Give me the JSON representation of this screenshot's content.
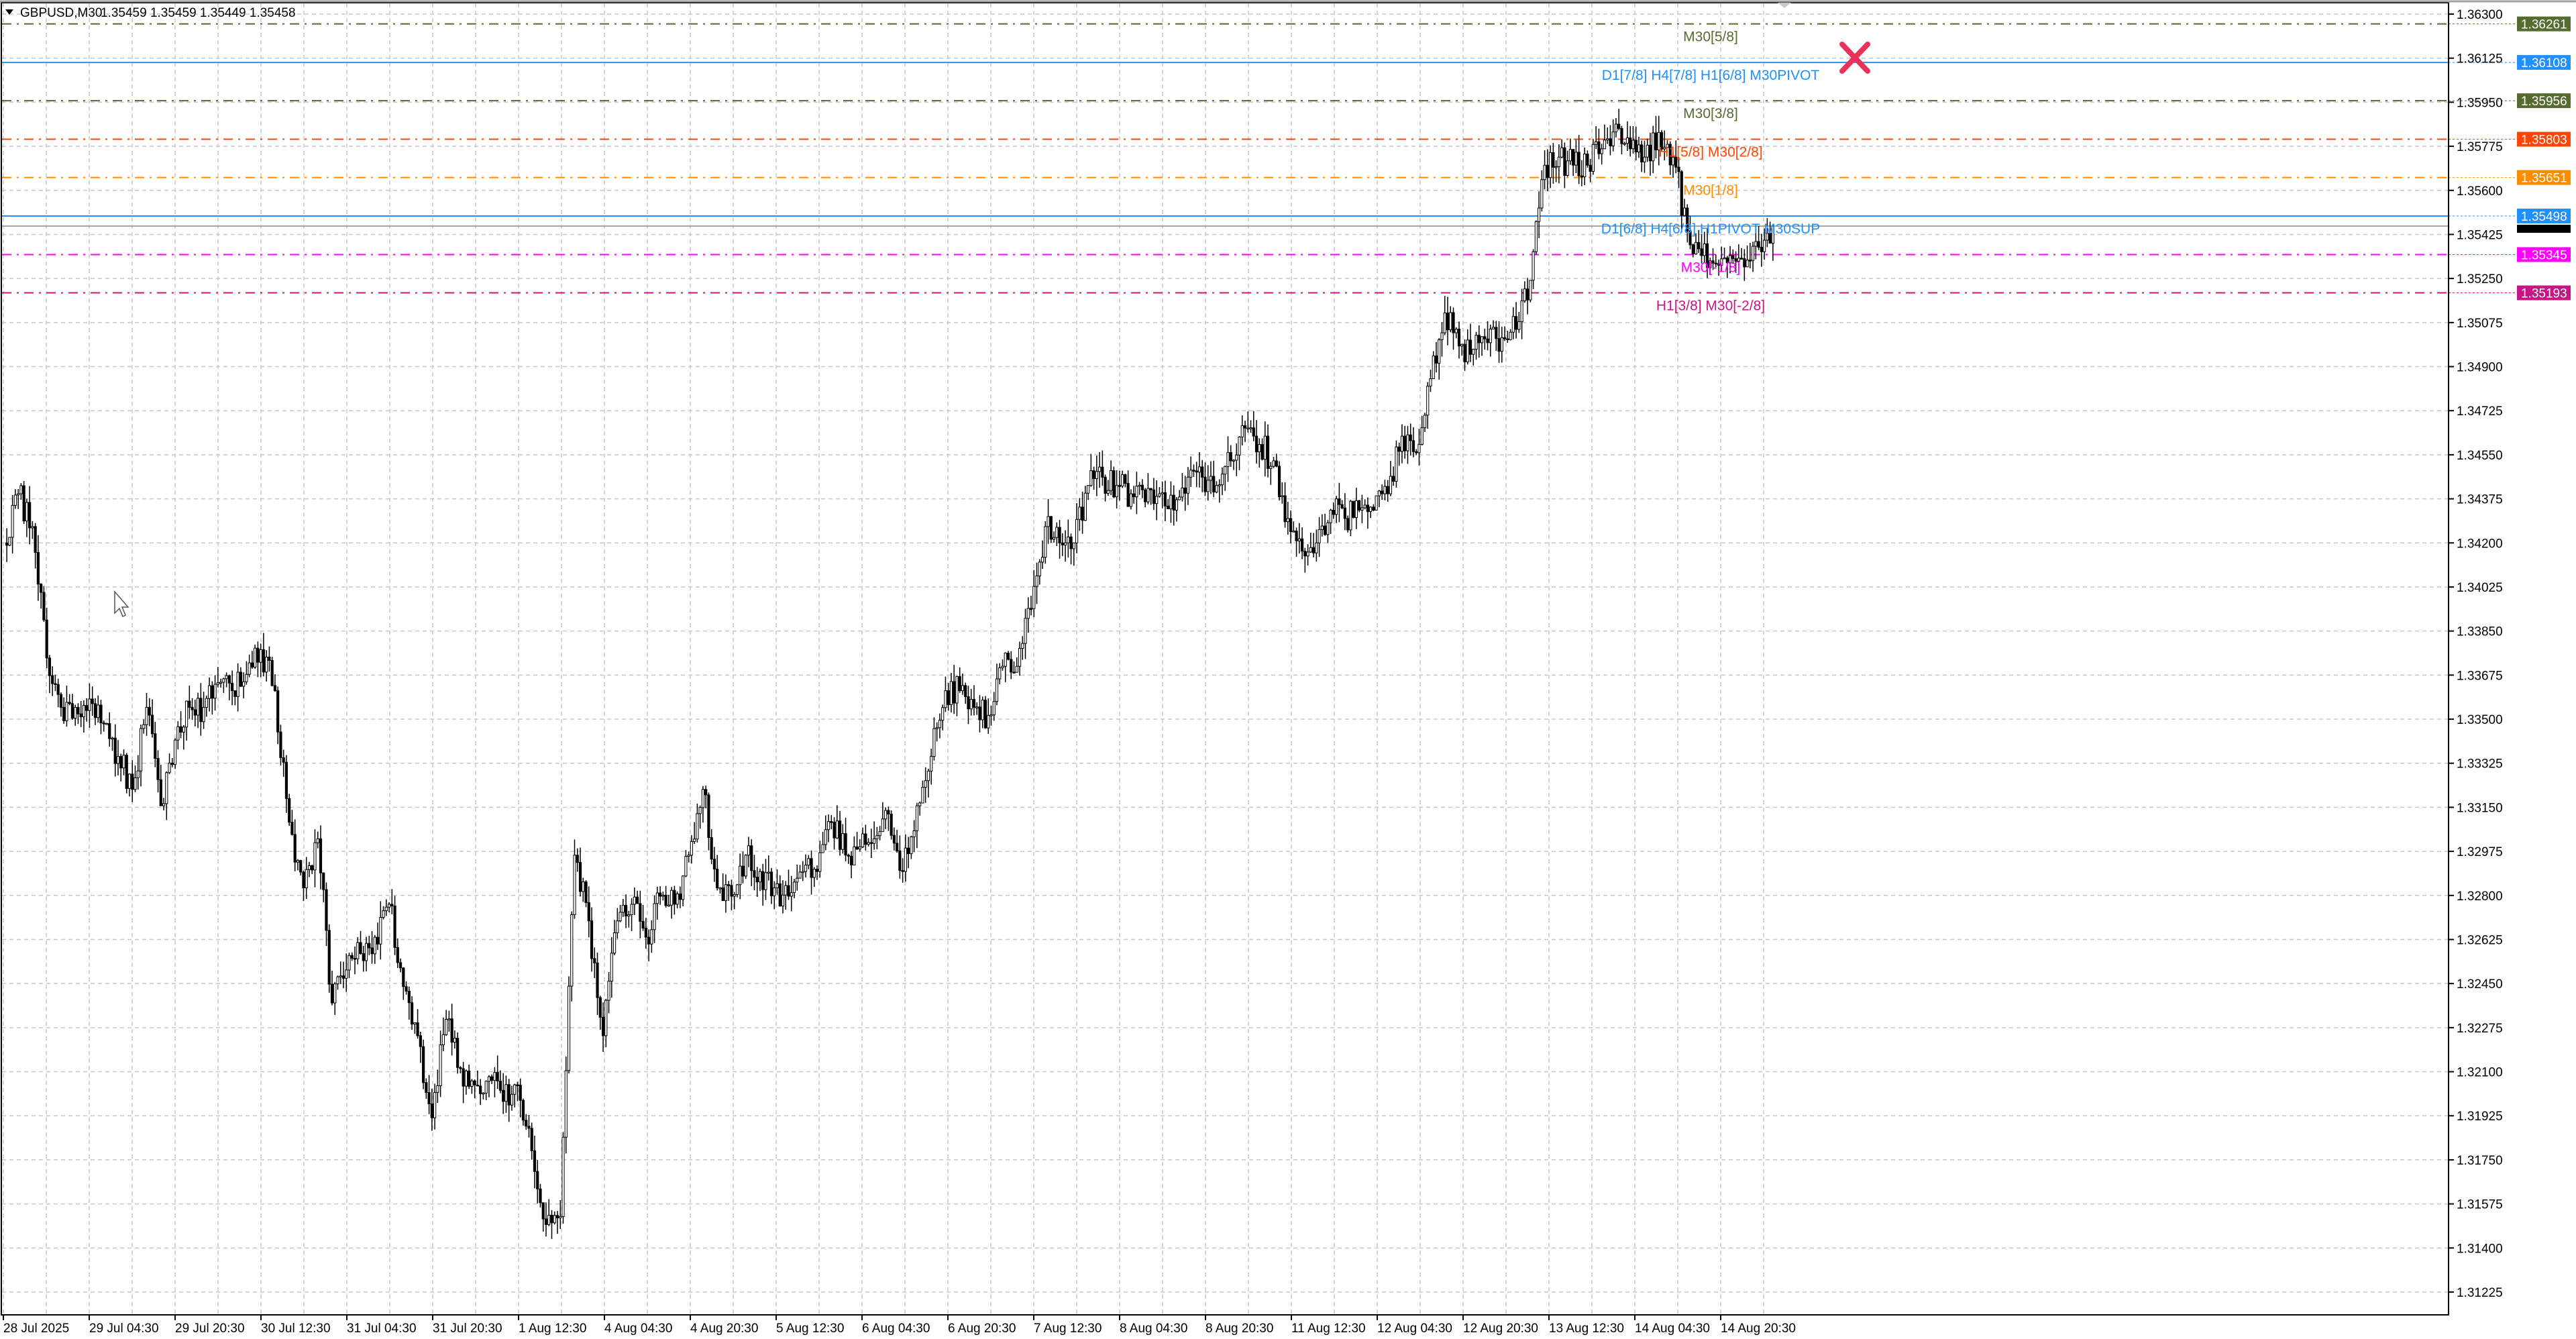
{
  "header": {
    "symbol": "GBPUSD,M30",
    "ohlc": "1.35459 1.35459 1.35449 1.35458",
    "menu_icon": "triangle-down-icon"
  },
  "chart_data": {
    "type": "candlestick",
    "symbol": "GBPUSD",
    "timeframe": "M30",
    "ylim": [
      1.3115,
      1.3635
    ],
    "grid": true,
    "y_ticks": [
      "1.36300",
      "1.36125",
      "1.35950",
      "1.35775",
      "1.35600",
      "1.35425",
      "1.35250",
      "1.35075",
      "1.34900",
      "1.34725",
      "1.34550",
      "1.34375",
      "1.34200",
      "1.34025",
      "1.33850",
      "1.33675",
      "1.33500",
      "1.33325",
      "1.33150",
      "1.32975",
      "1.32800",
      "1.32625",
      "1.32450",
      "1.32275",
      "1.32100",
      "1.31925",
      "1.31750",
      "1.31575",
      "1.31400",
      "1.31225"
    ],
    "x_ticks": [
      "28 Jul 2025",
      "29 Jul 04:30",
      "29 Jul 20:30",
      "30 Jul 12:30",
      "31 Jul 04:30",
      "31 Jul 20:30",
      "1 Aug 12:30",
      "4 Aug 04:30",
      "4 Aug 20:30",
      "5 Aug 12:30",
      "6 Aug 04:30",
      "6 Aug 20:30",
      "7 Aug 12:30",
      "8 Aug 04:30",
      "8 Aug 20:30",
      "11 Aug 12:30",
      "12 Aug 04:30",
      "12 Aug 20:30",
      "13 Aug 12:30",
      "14 Aug 04:30",
      "14 Aug 20:30"
    ],
    "approx_closes": [
      1.342,
      1.34395,
      1.34265,
      1.33743,
      1.33547,
      1.33547,
      1.3358,
      1.33482,
      1.33352,
      1.33221,
      1.33547,
      1.33156,
      1.33417,
      1.33547,
      1.33547,
      1.33645,
      1.33613,
      1.33678,
      1.33776,
      1.33613,
      1.33091,
      1.3283,
      1.33025,
      1.32373,
      1.32504,
      1.32569,
      1.32634,
      1.32765,
      1.32438,
      1.32243,
      1.31917,
      1.32308,
      1.32112,
      1.32047,
      1.3208,
      1.31982,
      1.32047,
      1.31786,
      1.31493,
      1.31525,
      1.3296,
      1.32699,
      1.32243,
      1.32699,
      1.32765,
      1.32634,
      1.32797,
      1.32765,
      1.3296,
      1.33221,
      1.3283,
      1.32797,
      1.3296,
      1.32895,
      1.3283,
      1.32797,
      1.32895,
      1.32895,
      1.33091,
      1.3296,
      1.32993,
      1.33025,
      1.33123,
      1.32895,
      1.33156,
      1.33352,
      1.33613,
      1.33613,
      1.33547,
      1.33515,
      1.3371,
      1.3371,
      1.33939,
      1.34265,
      1.342,
      1.342,
      1.34428,
      1.34461,
      1.34428,
      1.34395,
      1.34363,
      1.34395,
      1.3433,
      1.34461,
      1.34461,
      1.34428,
      1.34526,
      1.34656,
      1.34591,
      1.34526,
      1.34297,
      1.34167,
      1.342,
      1.3433,
      1.34297,
      1.3433,
      1.3433,
      1.34395,
      1.34624,
      1.34558,
      1.34852,
      1.35113,
      1.34982,
      1.34969,
      1.34995,
      1.35015,
      1.35048,
      1.35243,
      1.357,
      1.35732,
      1.357,
      1.357,
      1.35765,
      1.35863,
      1.35765,
      1.35732,
      1.3583,
      1.35732,
      1.35439,
      1.35341,
      1.35309,
      1.35341,
      1.35296,
      1.35374,
      1.35458
    ],
    "current_price": {
      "value": 1.35458,
      "label": "1.35458",
      "color": "#000000"
    },
    "levels": [
      {
        "price": 1.36261,
        "badge": "1.36261",
        "text": "M30[5/8]",
        "color": "#556B2F",
        "style": "dashdot"
      },
      {
        "price": 1.36108,
        "badge": "1.36108",
        "text": "D1[7/8] H4[7/8] H1[6/8] M30PIVOT",
        "color": "#1E90FF",
        "style": "solid"
      },
      {
        "price": 1.35956,
        "badge": "1.35956",
        "text": "M30[3/8]",
        "color": "#556B2F",
        "style": "dashdot"
      },
      {
        "price": 1.35803,
        "badge": "1.35803",
        "text": "H1[5/8] M30[2/8]",
        "color": "#FF4500",
        "style": "dashdot"
      },
      {
        "price": 1.35651,
        "badge": "1.35651",
        "text": "M30[1/8]",
        "color": "#FF8C00",
        "style": "dashdot"
      },
      {
        "price": 1.35498,
        "badge": "1.35498",
        "text": "D1[6/8] H4[6/8] H1PIVOT M30SUP",
        "color": "#1E90FF",
        "style": "solid"
      },
      {
        "price": 1.35345,
        "badge": "1.35345",
        "text": "M30[-1/8]",
        "color": "#FF00FF",
        "style": "dashdot"
      },
      {
        "price": 1.35193,
        "badge": "1.35193",
        "text": "H1[3/8] M30[-2/8]",
        "color": "#C71585",
        "style": "dashdot"
      }
    ],
    "marker": {
      "icon": "cross-x-icon",
      "color": "#E8325A"
    }
  },
  "cursor_icon": "mouse-pointer-icon"
}
